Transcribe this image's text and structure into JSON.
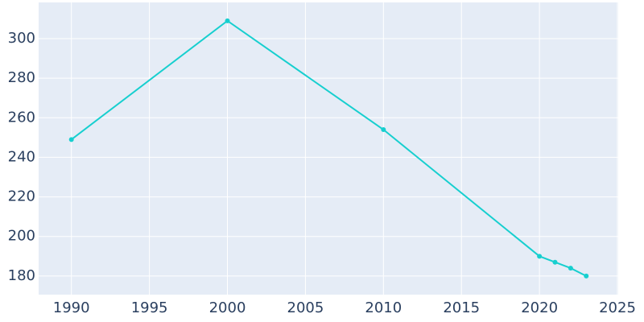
{
  "chart_data": {
    "type": "line",
    "x": [
      1990,
      2000,
      2010,
      2020,
      2021,
      2022,
      2023
    ],
    "series": [
      {
        "color": "#17cfcf",
        "values": [
          249,
          309,
          254,
          190,
          187,
          184,
          180
        ]
      }
    ],
    "xlim": [
      1987.9,
      2025.05
    ],
    "xticks": [
      1990,
      1995,
      2000,
      2005,
      2010,
      2015,
      2020,
      2025
    ],
    "ylim": [
      170.6,
      318.3
    ],
    "yticks": [
      180,
      200,
      220,
      240,
      260,
      280,
      300
    ],
    "grid": true
  }
}
